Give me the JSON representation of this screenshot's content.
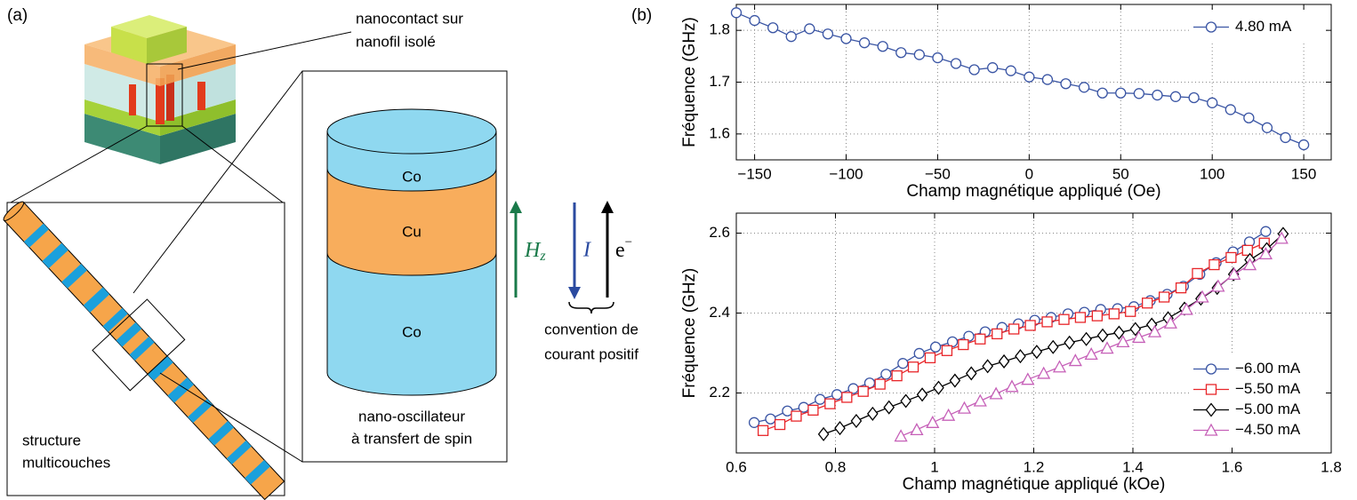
{
  "diagram": {
    "panel_label": "(a)",
    "callout": [
      "nanocontact sur",
      "nanofil isolé"
    ],
    "layers": [
      "Co",
      "Cu",
      "Co"
    ],
    "arrows": {
      "field": "H",
      "field_sub": "z",
      "current": "I",
      "electron": "e",
      "electron_sup": "−"
    },
    "convention": [
      "convention de",
      "courant positif"
    ],
    "oscillator": [
      "nano-oscillateur",
      "à transfert de spin"
    ],
    "structure": [
      "structure",
      "multicouches"
    ]
  },
  "panel_label_b": "(b)",
  "chart_data": [
    {
      "type": "line",
      "xlabel": "Champ magnétique appliqué (Oe)",
      "ylabel": "Fréquence (GHz)",
      "xlim": [
        -160,
        165
      ],
      "ylim": [
        1.55,
        1.85
      ],
      "grid": true,
      "legend": "upper right",
      "xticks": [
        {
          "value": -150,
          "label": "−150"
        },
        {
          "value": -100,
          "label": "−100"
        },
        {
          "value": -50,
          "label": "−50"
        },
        0,
        50,
        100,
        150
      ],
      "yticks": [
        1.6,
        1.7,
        1.8
      ],
      "x": [
        -160,
        -150,
        -140,
        -130,
        -120,
        -110,
        -100,
        -90,
        -80,
        -70,
        -60,
        -50,
        -40,
        -30,
        -20,
        -10,
        0,
        10,
        20,
        30,
        40,
        50,
        60,
        70,
        80,
        90,
        100,
        110,
        120,
        130,
        140,
        150
      ],
      "series": [
        {
          "name": "4.80 mA",
          "color": "#3a55a4",
          "marker": "o",
          "values": [
            1.834,
            1.819,
            1.805,
            1.788,
            1.803,
            1.793,
            1.784,
            1.776,
            1.769,
            1.757,
            1.753,
            1.747,
            1.736,
            1.724,
            1.728,
            1.722,
            1.71,
            1.705,
            1.697,
            1.69,
            1.679,
            1.679,
            1.678,
            1.675,
            1.672,
            1.67,
            1.66,
            1.647,
            1.631,
            1.612,
            1.593,
            1.579
          ]
        }
      ]
    },
    {
      "type": "line",
      "xlabel": "Champ magnétique appliqué (kOe)",
      "ylabel": "Fréquence (GHz)",
      "xlim": [
        0.6,
        1.8
      ],
      "ylim": [
        2.05,
        2.65
      ],
      "grid": true,
      "legend": "lower right",
      "xticks": [
        0.6,
        0.8,
        1,
        1.2,
        1.4,
        1.6,
        1.8
      ],
      "yticks": [
        2.2,
        2.4,
        2.6
      ],
      "series": [
        {
          "name": "−6.00 mA",
          "color": "#3a55a4",
          "marker": "o",
          "x": [
            0.636,
            0.669,
            0.703,
            0.736,
            0.769,
            0.803,
            0.836,
            0.869,
            0.902,
            0.936,
            0.969,
            1.002,
            1.036,
            1.069,
            1.102,
            1.136,
            1.169,
            1.202,
            1.235,
            1.269,
            1.302,
            1.335,
            1.369,
            1.402,
            1.435,
            1.469,
            1.502,
            1.535,
            1.568,
            1.602,
            1.635,
            1.668
          ],
          "values": [
            2.126,
            2.135,
            2.155,
            2.164,
            2.184,
            2.196,
            2.211,
            2.225,
            2.247,
            2.274,
            2.299,
            2.315,
            2.328,
            2.342,
            2.353,
            2.364,
            2.373,
            2.382,
            2.389,
            2.398,
            2.402,
            2.409,
            2.411,
            2.416,
            2.431,
            2.447,
            2.467,
            2.497,
            2.526,
            2.553,
            2.578,
            2.604
          ]
        },
        {
          "name": "−5.50 mA",
          "color": "#e8262a",
          "marker": "s",
          "x": [
            0.654,
            0.688,
            0.721,
            0.755,
            0.789,
            0.823,
            0.856,
            0.89,
            0.924,
            0.957,
            0.991,
            1.025,
            1.058,
            1.092,
            1.126,
            1.16,
            1.193,
            1.227,
            1.261,
            1.294,
            1.328,
            1.362,
            1.395,
            1.429,
            1.463,
            1.497,
            1.53,
            1.564,
            1.598,
            1.631,
            1.665
          ],
          "values": [
            2.106,
            2.121,
            2.142,
            2.157,
            2.173,
            2.189,
            2.204,
            2.222,
            2.243,
            2.265,
            2.288,
            2.306,
            2.321,
            2.335,
            2.348,
            2.36,
            2.369,
            2.378,
            2.384,
            2.389,
            2.393,
            2.398,
            2.404,
            2.425,
            2.44,
            2.463,
            2.499,
            2.521,
            2.539,
            2.557,
            2.575
          ]
        },
        {
          "name": "−5.00 mA",
          "color": "#000000",
          "marker": "D",
          "x": [
            0.776,
            0.809,
            0.842,
            0.875,
            0.908,
            0.942,
            0.975,
            1.008,
            1.041,
            1.074,
            1.107,
            1.14,
            1.173,
            1.206,
            1.239,
            1.272,
            1.306,
            1.339,
            1.372,
            1.405,
            1.438,
            1.471,
            1.504,
            1.537,
            1.57,
            1.603,
            1.636,
            1.67,
            1.703
          ],
          "values": [
            2.097,
            2.112,
            2.13,
            2.148,
            2.164,
            2.18,
            2.196,
            2.213,
            2.231,
            2.249,
            2.267,
            2.279,
            2.292,
            2.303,
            2.315,
            2.326,
            2.335,
            2.344,
            2.351,
            2.36,
            2.371,
            2.387,
            2.411,
            2.436,
            2.463,
            2.497,
            2.533,
            2.56,
            2.598
          ]
        },
        {
          "name": "−4.50 mA",
          "color": "#c660b8",
          "marker": "^",
          "x": [
            0.932,
            0.964,
            0.996,
            1.028,
            1.06,
            1.092,
            1.124,
            1.156,
            1.188,
            1.22,
            1.252,
            1.284,
            1.316,
            1.348,
            1.38,
            1.412,
            1.444,
            1.476,
            1.508,
            1.54,
            1.572,
            1.604,
            1.636,
            1.668,
            1.7
          ],
          "values": [
            2.092,
            2.108,
            2.126,
            2.144,
            2.162,
            2.18,
            2.198,
            2.216,
            2.234,
            2.249,
            2.265,
            2.281,
            2.297,
            2.312,
            2.328,
            2.339,
            2.353,
            2.375,
            2.409,
            2.44,
            2.467,
            2.497,
            2.521,
            2.548,
            2.587
          ]
        }
      ]
    }
  ]
}
